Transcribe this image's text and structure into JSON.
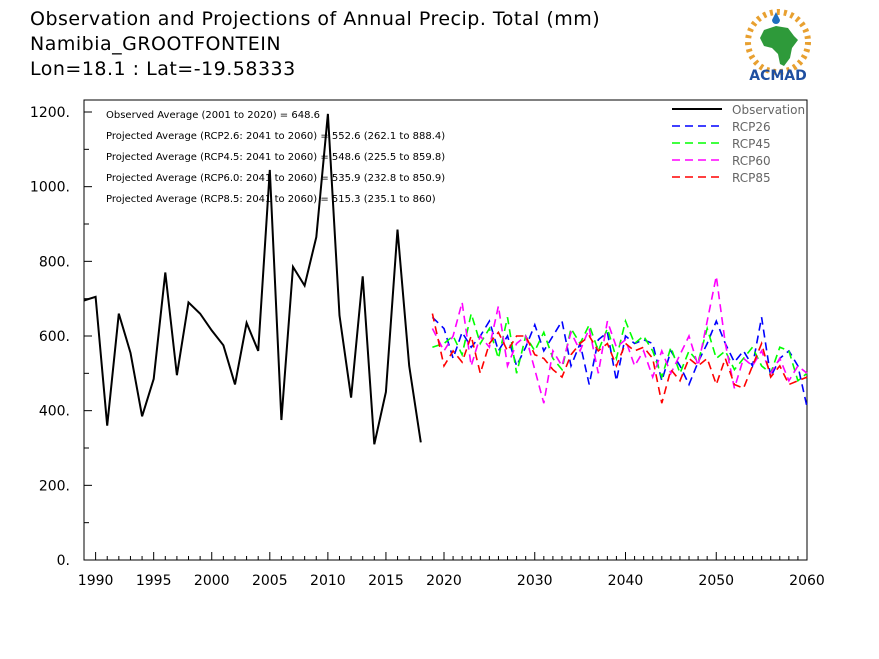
{
  "header": {
    "title": "Observation and Projections of Annual Precip. Total (mm)",
    "location": "Namibia_GROOTFONTEIN",
    "coords": "Lon=18.1 : Lat=-19.58333"
  },
  "logo": {
    "text": "ACMAD",
    "icon": "africa-map-logo-icon"
  },
  "chart_data": {
    "type": "line",
    "xlim": [
      1989,
      2060
    ],
    "ylim": [
      0,
      1200
    ],
    "yticks": [
      0,
      200,
      400,
      600,
      800,
      1000,
      1200
    ],
    "ytick_labels": [
      "0.",
      "200.",
      "400.",
      "600.",
      "800.",
      "1000.",
      "1200."
    ],
    "xticks": [
      1990,
      1995,
      2000,
      2005,
      2010,
      2015,
      2020,
      2030,
      2040,
      2050,
      2060
    ],
    "xtick_labels": [
      "1990",
      "1995",
      "2000",
      "2005",
      "2010",
      "2015",
      "2020",
      "2030",
      "2040",
      "2050",
      "2060"
    ],
    "grid": false,
    "legend_position": "top-right",
    "annotations": [
      "Observed Average (2001 to 2020) = 648.6",
      "Projected Average (RCP2.6: 2041 to 2060) = 552.6 (262.1 to 888.4)",
      "Projected Average (RCP4.5: 2041 to 2060) = 548.6 (225.5 to 859.8)",
      "Projected Average (RCP6.0: 2041 to 2060) = 535.9 (232.8 to 850.9)",
      "Projected Average (RCP8.5: 2041 to 2060) = 515.3 (235.1 to 860)"
    ],
    "series": [
      {
        "name": "Observation",
        "color": "#000000",
        "dash": "solid",
        "x": [
          1989,
          1990,
          1991,
          1992,
          1993,
          1994,
          1995,
          1996,
          1997,
          1998,
          1999,
          2000,
          2001,
          2002,
          2003,
          2004,
          2005,
          2006,
          2007,
          2008,
          2009,
          2010,
          2011,
          2012,
          2013,
          2014,
          2015,
          2016,
          2017,
          2018,
          2019
        ],
        "y": [
          695,
          705,
          360,
          660,
          555,
          385,
          485,
          770,
          495,
          690,
          660,
          615,
          575,
          470,
          635,
          560,
          1045,
          375,
          785,
          735,
          865,
          1195,
          655,
          435,
          760,
          310,
          450,
          885,
          520,
          315,
          null
        ]
      },
      {
        "name": "RCP26",
        "color": "#0000ff",
        "dash": "dashed",
        "x": [
          2019,
          2020,
          2021,
          2022,
          2023,
          2024,
          2025,
          2026,
          2027,
          2028,
          2029,
          2030,
          2031,
          2032,
          2033,
          2034,
          2035,
          2036,
          2037,
          2038,
          2039,
          2040,
          2041,
          2042,
          2043,
          2044,
          2045,
          2046,
          2047,
          2048,
          2049,
          2050,
          2051,
          2052,
          2053,
          2054,
          2055,
          2056,
          2057,
          2058,
          2059,
          2060
        ],
        "y": [
          650,
          620,
          540,
          610,
          570,
          600,
          640,
          560,
          600,
          520,
          570,
          630,
          560,
          600,
          640,
          520,
          580,
          470,
          590,
          610,
          480,
          600,
          580,
          590,
          580,
          480,
          560,
          520,
          470,
          530,
          580,
          640,
          580,
          530,
          560,
          520,
          650,
          490,
          540,
          560,
          520,
          410
        ]
      },
      {
        "name": "RCP45",
        "color": "#00ff00",
        "dash": "dashed",
        "x": [
          2019,
          2020,
          2021,
          2022,
          2023,
          2024,
          2025,
          2026,
          2027,
          2028,
          2029,
          2030,
          2031,
          2032,
          2033,
          2034,
          2035,
          2036,
          2037,
          2038,
          2039,
          2040,
          2041,
          2042,
          2043,
          2044,
          2045,
          2046,
          2047,
          2048,
          2049,
          2050,
          2051,
          2052,
          2053,
          2054,
          2055,
          2056,
          2057,
          2058,
          2059,
          2060
        ],
        "y": [
          570,
          580,
          600,
          550,
          660,
          580,
          620,
          540,
          650,
          500,
          600,
          560,
          610,
          540,
          510,
          620,
          580,
          630,
          560,
          620,
          540,
          640,
          580,
          600,
          560,
          490,
          570,
          500,
          560,
          530,
          620,
          540,
          560,
          510,
          540,
          570,
          520,
          500,
          570,
          560,
          480,
          500
        ]
      },
      {
        "name": "RCP60",
        "color": "#ff00ff",
        "dash": "dashed",
        "x": [
          2019,
          2020,
          2021,
          2022,
          2023,
          2024,
          2025,
          2026,
          2027,
          2028,
          2029,
          2030,
          2031,
          2032,
          2033,
          2034,
          2035,
          2036,
          2037,
          2038,
          2039,
          2040,
          2041,
          2042,
          2043,
          2044,
          2045,
          2046,
          2047,
          2048,
          2049,
          2050,
          2051,
          2052,
          2053,
          2054,
          2055,
          2056,
          2057,
          2058,
          2059,
          2060
        ],
        "y": [
          620,
          560,
          600,
          690,
          520,
          600,
          570,
          680,
          520,
          580,
          600,
          510,
          420,
          560,
          520,
          610,
          560,
          620,
          500,
          640,
          570,
          590,
          520,
          560,
          490,
          560,
          500,
          550,
          600,
          520,
          640,
          760,
          580,
          460,
          540,
          520,
          560,
          500,
          540,
          480,
          520,
          500
        ]
      },
      {
        "name": "RCP85",
        "color": "#ff0000",
        "dash": "dashed",
        "x": [
          2019,
          2020,
          2021,
          2022,
          2023,
          2024,
          2025,
          2026,
          2027,
          2028,
          2029,
          2030,
          2031,
          2032,
          2033,
          2034,
          2035,
          2036,
          2037,
          2038,
          2039,
          2040,
          2041,
          2042,
          2043,
          2044,
          2045,
          2046,
          2047,
          2048,
          2049,
          2050,
          2051,
          2052,
          2053,
          2054,
          2055,
          2056,
          2057,
          2058,
          2059,
          2060
        ],
        "y": [
          660,
          520,
          560,
          530,
          600,
          500,
          580,
          610,
          560,
          600,
          600,
          550,
          540,
          510,
          490,
          550,
          580,
          600,
          560,
          580,
          520,
          580,
          560,
          570,
          540,
          420,
          510,
          480,
          540,
          520,
          540,
          470,
          540,
          470,
          460,
          520,
          580,
          490,
          520,
          470,
          480,
          490
        ]
      }
    ]
  }
}
